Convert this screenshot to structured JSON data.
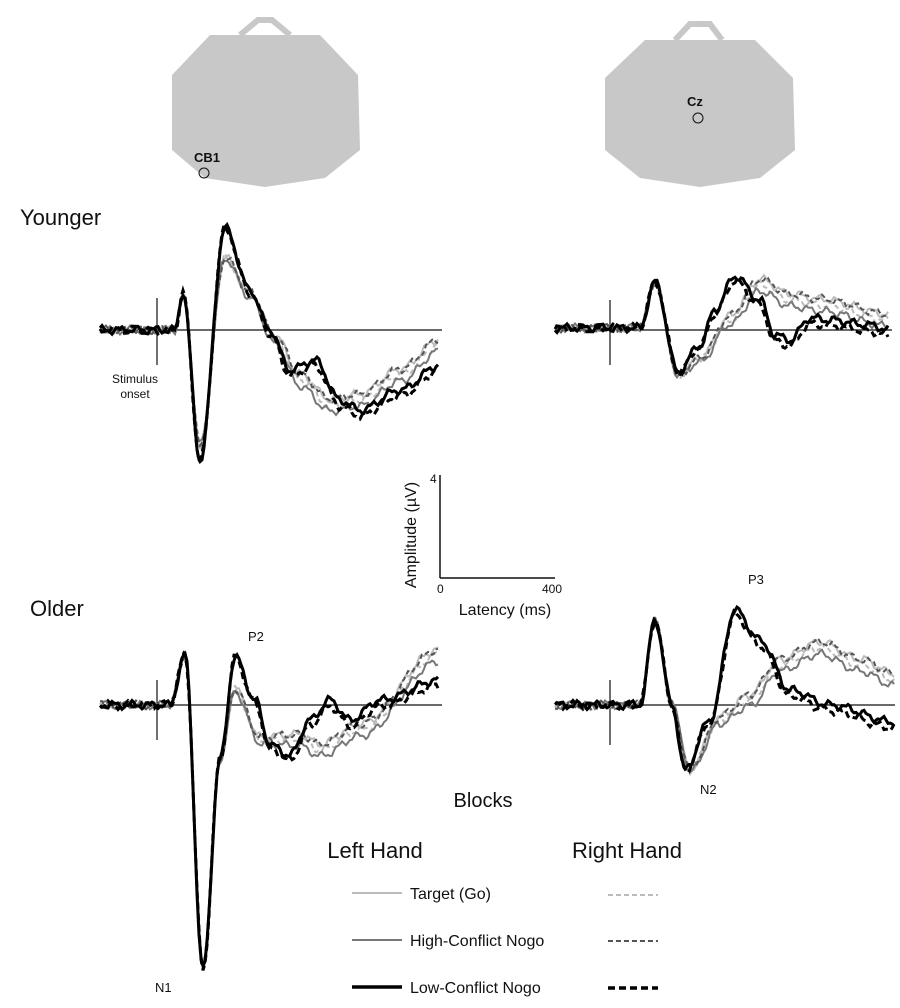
{
  "scalp_maps": [
    {
      "electrode": "CB1"
    },
    {
      "electrode": "Cz"
    }
  ],
  "groups": [
    "Younger",
    "Older"
  ],
  "stimulus_label": "Stimulus onset",
  "scale_bar": {
    "y_label": "Amplitude (µV)",
    "y_max": "4",
    "x_min": "0",
    "x_max": "400",
    "x_label": "Latency (ms)"
  },
  "peaks": [
    "P2",
    "N1",
    "P3",
    "N2"
  ],
  "legend": {
    "title": "Blocks",
    "columns": [
      "Left Hand",
      "Right Hand"
    ],
    "conditions": [
      "Target (Go)",
      "High-Conflict Nogo",
      "Low-Conflict Nogo"
    ]
  }
}
